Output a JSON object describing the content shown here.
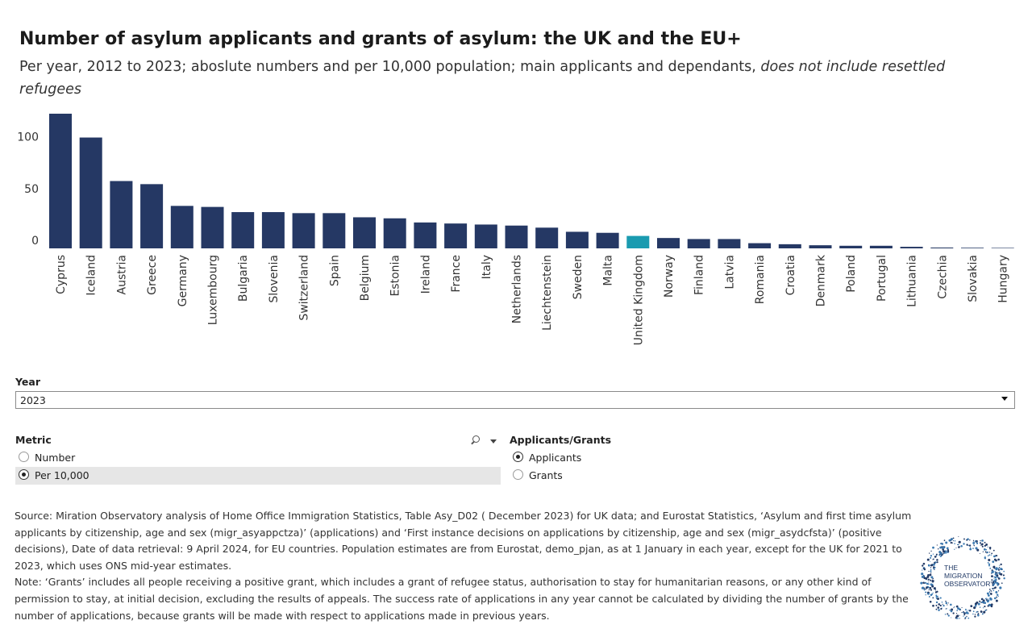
{
  "title": "Number of asylum applicants and grants of asylum: the UK and the EU+",
  "subtitle": "Per year, 2012 to 2023; aboslute numbers and per 10,000 population; main applicants and dependants, ",
  "subtitle_italic": "does not include resettled refugees",
  "colors": {
    "bar": "#253864",
    "highlight": "#1a9bb0",
    "axis_text": "#333333"
  },
  "chart_data": {
    "type": "bar",
    "categories": [
      "Cyprus",
      "Iceland",
      "Austria",
      "Greece",
      "Germany",
      "Luxembourg",
      "Bulgaria",
      "Slovenia",
      "Switzerland",
      "Spain",
      "Belgium",
      "Estonia",
      "Ireland",
      "France",
      "Italy",
      "Netherlands",
      "Liechtenstein",
      "Sweden",
      "Malta",
      "United Kingdom",
      "Norway",
      "Finland",
      "Latvia",
      "Romania",
      "Croatia",
      "Denmark",
      "Poland",
      "Portugal",
      "Lithuania",
      "Czechia",
      "Slovakia",
      "Hungary"
    ],
    "values": [
      130,
      107,
      65,
      62,
      41,
      40,
      35,
      35,
      34,
      34,
      30,
      29,
      25,
      24,
      23,
      22,
      20,
      16,
      15,
      12,
      10,
      9,
      9,
      5,
      4,
      3,
      2.5,
      2.5,
      1.5,
      0.8,
      0.6,
      0.1
    ],
    "highlight": "United Kingdom",
    "ylim": [
      0,
      130
    ],
    "yticks": [
      0,
      50,
      100
    ],
    "grid": false
  },
  "controls": {
    "year": {
      "label": "Year",
      "value": "2023"
    },
    "metric": {
      "label": "Metric",
      "options": [
        "Number",
        "Per 10,000"
      ],
      "selected": "Per 10,000"
    },
    "type": {
      "label": "Applicants/Grants",
      "options": [
        "Applicants",
        "Grants"
      ],
      "selected": "Applicants"
    }
  },
  "source_text": "Source: Miration Observatory analysis of Home Office Immigration Statistics, Table Asy_D02 ( December 2023) for UK data; and Eurostat Statistics,  ‘Asylum and first time asylum applicants by citizenship, age and sex (migr_asyappctza)’ (applications) and ‘First instance decisions on applications by citizenship, age and sex (migr_asydcfsta)’ (positive decisions), Date of data retrieval: 9 April 2024, for EU countries. Population estimates are from Eurostat, demo_pjan, as at 1 January in each year, except for the UK for 2021 to 2023, which uses ONS mid-year estimates.",
  "note_text": "Note: ‘Grants’ includes all people receiving a positive grant, which includes a grant of refugee status, authorisation to stay for humanitarian reasons, or any other kind of permission to stay, at initial decision, excluding the results of appeals. The success rate of applications in any year cannot be calculated by dividing the number of grants by the number of applications, because grants will be made with respect to applications made in previous years.",
  "logo": {
    "line1": "THE",
    "line2": "MIGRATION",
    "line3": "OBSERVATORY"
  }
}
